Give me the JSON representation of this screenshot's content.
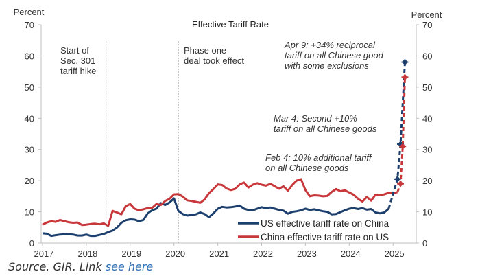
{
  "chart_data": {
    "type": "line",
    "title": "Effective Tariff Rate",
    "ylabel_left": "Percent",
    "ylabel_right": "Percent",
    "ylim": [
      0,
      70
    ],
    "yticks": [
      0,
      10,
      20,
      30,
      40,
      50,
      60,
      70
    ],
    "xlim": [
      2017.0,
      2025.6
    ],
    "xticks": [
      2017,
      2018,
      2019,
      2020,
      2021,
      2022,
      2023,
      2024,
      2025
    ],
    "grid": false,
    "legend_position": "bottom-right",
    "colors": {
      "us": "#1c3f6e",
      "china": "#c8373a",
      "axis": "#bfbfbf",
      "event_line": "#9a9a9a"
    },
    "series": [
      {
        "name": "US effective tariff rate on China",
        "color": "#1c3f6e",
        "x": [
          2017.0,
          2017.1,
          2017.2,
          2017.3,
          2017.4,
          2017.5,
          2017.6,
          2017.7,
          2017.8,
          2017.9,
          2018.0,
          2018.1,
          2018.2,
          2018.3,
          2018.4,
          2018.5,
          2018.6,
          2018.7,
          2018.8,
          2018.9,
          2019.0,
          2019.1,
          2019.2,
          2019.3,
          2019.4,
          2019.5,
          2019.6,
          2019.7,
          2019.8,
          2019.9,
          2020.0,
          2020.1,
          2020.2,
          2020.3,
          2020.4,
          2020.5,
          2020.6,
          2020.7,
          2020.8,
          2020.9,
          2021.0,
          2021.1,
          2021.2,
          2021.3,
          2021.4,
          2021.5,
          2021.6,
          2021.7,
          2021.8,
          2021.9,
          2022.0,
          2022.1,
          2022.2,
          2022.3,
          2022.4,
          2022.5,
          2022.6,
          2022.7,
          2022.8,
          2022.9,
          2023.0,
          2023.1,
          2023.2,
          2023.3,
          2023.4,
          2023.5,
          2023.6,
          2023.7,
          2023.8,
          2023.9,
          2024.0,
          2024.1,
          2024.2,
          2024.3,
          2024.4,
          2024.5,
          2024.6,
          2024.7,
          2024.8,
          2024.9
        ],
        "values": [
          3.1,
          3.0,
          2.3,
          2.5,
          2.7,
          2.8,
          2.8,
          2.7,
          2.4,
          2.4,
          2.7,
          2.3,
          2.3,
          2.6,
          2.9,
          3.5,
          4.0,
          5.0,
          6.5,
          7.3,
          7.6,
          7.5,
          7.0,
          7.4,
          9.5,
          10.5,
          11.0,
          12.8,
          12.2,
          13.0,
          14.3,
          10.3,
          9.3,
          8.8,
          9.0,
          9.2,
          9.8,
          9.3,
          8.3,
          9.5,
          11.0,
          11.6,
          11.4,
          11.5,
          11.7,
          12.0,
          11.0,
          10.6,
          10.5,
          11.0,
          11.5,
          11.2,
          11.4,
          11.0,
          10.6,
          10.4,
          9.4,
          10.0,
          10.2,
          10.5,
          11.0,
          10.6,
          10.8,
          10.5,
          10.2,
          10.0,
          9.2,
          9.3,
          9.9,
          10.5,
          11.0,
          11.2,
          10.9,
          11.2,
          10.7,
          10.9,
          9.8,
          9.5,
          9.8,
          11.0
        ]
      },
      {
        "name": "China effective tariff rate on US",
        "color": "#c8373a",
        "x": [
          2017.0,
          2017.1,
          2017.2,
          2017.3,
          2017.4,
          2017.5,
          2017.6,
          2017.7,
          2017.8,
          2017.9,
          2018.0,
          2018.1,
          2018.2,
          2018.3,
          2018.4,
          2018.5,
          2018.6,
          2018.7,
          2018.8,
          2018.9,
          2019.0,
          2019.1,
          2019.2,
          2019.3,
          2019.4,
          2019.5,
          2019.6,
          2019.7,
          2019.8,
          2019.9,
          2020.0,
          2020.1,
          2020.2,
          2020.3,
          2020.4,
          2020.5,
          2020.6,
          2020.7,
          2020.8,
          2020.9,
          2021.0,
          2021.1,
          2021.2,
          2021.3,
          2021.4,
          2021.5,
          2021.6,
          2021.7,
          2021.8,
          2021.9,
          2022.0,
          2022.1,
          2022.2,
          2022.3,
          2022.4,
          2022.5,
          2022.6,
          2022.7,
          2022.8,
          2022.9,
          2023.0,
          2023.1,
          2023.2,
          2023.3,
          2023.4,
          2023.5,
          2023.6,
          2023.7,
          2023.8,
          2023.9,
          2024.0,
          2024.1,
          2024.2,
          2024.3,
          2024.4,
          2024.5,
          2024.6,
          2024.7,
          2024.8,
          2024.9,
          2025.0,
          2025.1
        ],
        "values": [
          5.9,
          6.6,
          7.0,
          6.8,
          7.4,
          7.0,
          6.7,
          6.5,
          6.6,
          5.8,
          5.9,
          6.1,
          6.2,
          6.0,
          6.3,
          5.5,
          10.3,
          9.8,
          9.2,
          11.8,
          12.5,
          11.0,
          10.5,
          10.8,
          11.2,
          11.3,
          12.5,
          12.2,
          13.5,
          14.2,
          15.6,
          15.7,
          14.9,
          13.7,
          13.5,
          13.2,
          12.9,
          14.0,
          16.0,
          17.3,
          18.8,
          18.6,
          17.5,
          17.0,
          17.4,
          18.8,
          19.4,
          17.8,
          18.7,
          19.2,
          18.7,
          18.4,
          19.0,
          18.2,
          17.4,
          18.2,
          16.8,
          18.6,
          20.0,
          20.5,
          17.0,
          15.0,
          15.3,
          15.2,
          15.0,
          15.1,
          16.4,
          17.3,
          16.6,
          16.9,
          16.2,
          15.5,
          14.2,
          13.3,
          14.8,
          13.6,
          15.5,
          15.4,
          15.6,
          16.1,
          16.0,
          16.3
        ]
      },
      {
        "name": "US effective tariff rate on China (projected)",
        "color": "#1c3f6e",
        "dashed": true,
        "markers": true,
        "x": [
          2024.9,
          2025.1,
          2025.17,
          2025.27
        ],
        "values": [
          11.0,
          20.5,
          31.7,
          58.0
        ]
      },
      {
        "name": "China effective tariff rate on US (projected)",
        "color": "#c8373a",
        "dashed": true,
        "markers": true,
        "x": [
          2025.1,
          2025.17,
          2025.22,
          2025.27
        ],
        "values": [
          16.3,
          19.0,
          31.0,
          53.2
        ]
      }
    ],
    "event_lines": [
      {
        "x": 2018.45,
        "label_lines": [
          "Start of",
          "Sec. 301",
          "tariff hike"
        ]
      },
      {
        "x": 2020.1,
        "label_lines": [
          "Phase one",
          "deal took effect"
        ]
      }
    ],
    "annotations": [
      {
        "lines": [
          "Apr 9: +34% reciprocal",
          "tariff on all Chinese good",
          "with some exclusions"
        ]
      },
      {
        "lines": [
          "Mar 4: Second +10%",
          "tariff on all Chinese goods"
        ]
      },
      {
        "lines": [
          "Feb 4: 10% additional tariff",
          "on all Chinese goods"
        ]
      }
    ],
    "legend": [
      {
        "label": "US effective tariff rate on China",
        "color": "#1c3f6e"
      },
      {
        "label": "China effective tariff rate on US",
        "color": "#c8373a"
      }
    ]
  },
  "footer": {
    "source_text": "Source. GIR. Link ",
    "link_text": "see here",
    "link_color": "#2f6fb5"
  }
}
